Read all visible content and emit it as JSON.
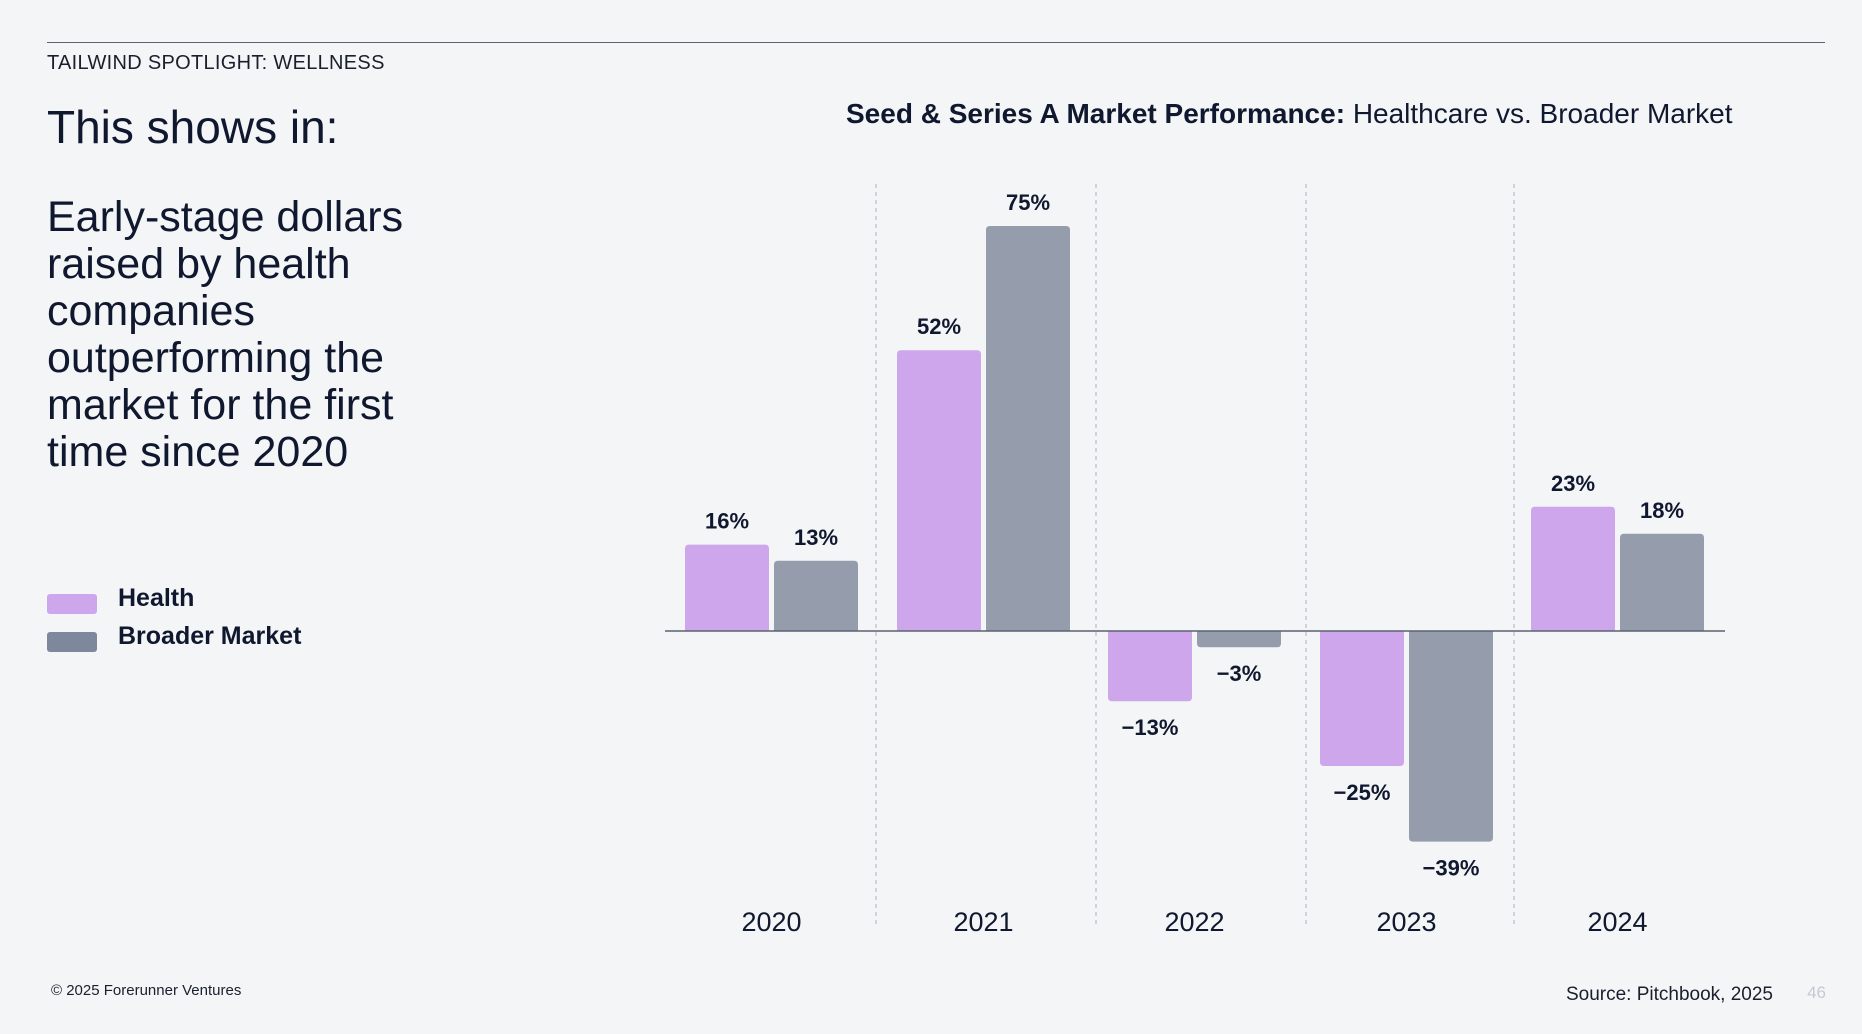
{
  "eyebrow": "TAILWIND SPOTLIGHT: WELLNESS",
  "headline": "This shows in:",
  "body": "Early-stage dollars raised by health companies outperforming the market for the first time since 2020",
  "legend": [
    {
      "label": "Health",
      "color": "#cda6ec"
    },
    {
      "label": "Broader Market",
      "color": "#7e889d"
    }
  ],
  "chart_title": {
    "bold": "Seed & Series A Market Performance:",
    "regular": "Healthcare vs. Broader Market"
  },
  "chart_data": {
    "type": "bar",
    "title": "Seed & Series A Market Performance: Healthcare vs. Broader Market",
    "categories": [
      "2020",
      "2021",
      "2022",
      "2023",
      "2024"
    ],
    "series": [
      {
        "name": "Health",
        "color": "#cda6ec",
        "values": [
          16,
          52,
          -13,
          -25,
          23
        ],
        "labels": [
          "16%",
          "52%",
          "−13%",
          "−25%",
          "23%"
        ]
      },
      {
        "name": "Broader Market",
        "color": "#959dad",
        "values": [
          13,
          75,
          -3,
          -39,
          18
        ],
        "labels": [
          "13%",
          "75%",
          "−3%",
          "−39%",
          "18%"
        ]
      }
    ],
    "ylim": [
      -39,
      75
    ],
    "legend_position": "left",
    "grid": "dashed vertical separators between years"
  },
  "footer": {
    "copyright": "© 2025 Forerunner Ventures",
    "source": "Source: Pitchbook, 2025",
    "page_number": "46"
  }
}
